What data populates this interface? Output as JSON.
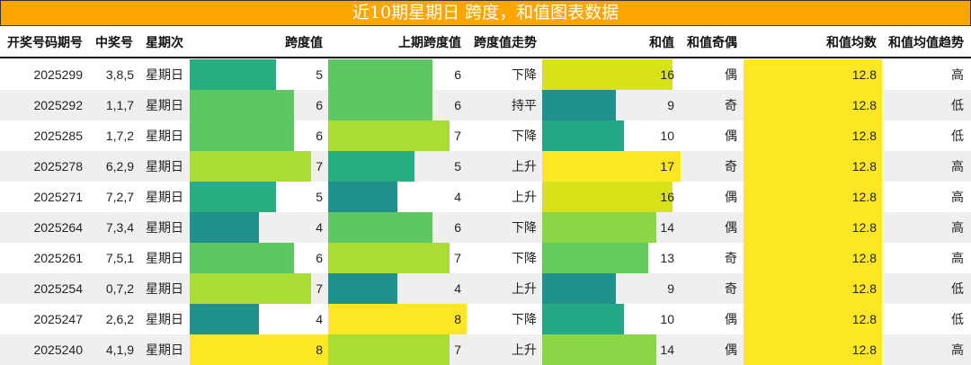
{
  "title": "近10期星期日 跨度，和值图表数据",
  "columns": [
    "开奖号码期号",
    "中奖号",
    "星期次",
    "跨度值",
    "上期跨度值",
    "跨度值走势",
    "和值",
    "和值奇偶",
    "和值均数",
    "和值均值趋势"
  ],
  "colors": {
    "title_bg": "#FFA500",
    "avg_bg": "#FDE725",
    "scale": {
      "4": "#21918C",
      "5": "#29AF7F",
      "6": "#5DC863",
      "7": "#AADC32",
      "8": "#FDE725",
      "9": "#21918C",
      "10": "#22A884",
      "13": "#65CB5E",
      "14": "#8AD647",
      "16": "#D8E219",
      "17": "#FDE725"
    }
  },
  "rows": [
    {
      "issue": "2025299",
      "numbers": "3,8,5",
      "weekday": "星期日",
      "span": "5",
      "prev_span": "6",
      "span_trend": "下降",
      "sum": "16",
      "sum_parity": "偶",
      "sum_avg": "12.8",
      "avg_trend": "高"
    },
    {
      "issue": "2025292",
      "numbers": "1,1,7",
      "weekday": "星期日",
      "span": "6",
      "prev_span": "6",
      "span_trend": "持平",
      "sum": "9",
      "sum_parity": "奇",
      "sum_avg": "12.8",
      "avg_trend": "低"
    },
    {
      "issue": "2025285",
      "numbers": "1,7,2",
      "weekday": "星期日",
      "span": "6",
      "prev_span": "7",
      "span_trend": "下降",
      "sum": "10",
      "sum_parity": "偶",
      "sum_avg": "12.8",
      "avg_trend": "低"
    },
    {
      "issue": "2025278",
      "numbers": "6,2,9",
      "weekday": "星期日",
      "span": "7",
      "prev_span": "5",
      "span_trend": "上升",
      "sum": "17",
      "sum_parity": "奇",
      "sum_avg": "12.8",
      "avg_trend": "高"
    },
    {
      "issue": "2025271",
      "numbers": "7,2,7",
      "weekday": "星期日",
      "span": "5",
      "prev_span": "4",
      "span_trend": "上升",
      "sum": "16",
      "sum_parity": "偶",
      "sum_avg": "12.8",
      "avg_trend": "高"
    },
    {
      "issue": "2025264",
      "numbers": "7,3,4",
      "weekday": "星期日",
      "span": "4",
      "prev_span": "6",
      "span_trend": "下降",
      "sum": "14",
      "sum_parity": "偶",
      "sum_avg": "12.8",
      "avg_trend": "高"
    },
    {
      "issue": "2025261",
      "numbers": "7,5,1",
      "weekday": "星期日",
      "span": "6",
      "prev_span": "7",
      "span_trend": "下降",
      "sum": "13",
      "sum_parity": "奇",
      "sum_avg": "12.8",
      "avg_trend": "高"
    },
    {
      "issue": "2025254",
      "numbers": "0,7,2",
      "weekday": "星期日",
      "span": "7",
      "prev_span": "4",
      "span_trend": "上升",
      "sum": "9",
      "sum_parity": "奇",
      "sum_avg": "12.8",
      "avg_trend": "低"
    },
    {
      "issue": "2025247",
      "numbers": "2,6,2",
      "weekday": "星期日",
      "span": "4",
      "prev_span": "8",
      "span_trend": "下降",
      "sum": "10",
      "sum_parity": "偶",
      "sum_avg": "12.8",
      "avg_trend": "低"
    },
    {
      "issue": "2025240",
      "numbers": "4,1,9",
      "weekday": "星期日",
      "span": "8",
      "prev_span": "7",
      "span_trend": "上升",
      "sum": "14",
      "sum_parity": "偶",
      "sum_avg": "12.8",
      "avg_trend": "高"
    }
  ]
}
